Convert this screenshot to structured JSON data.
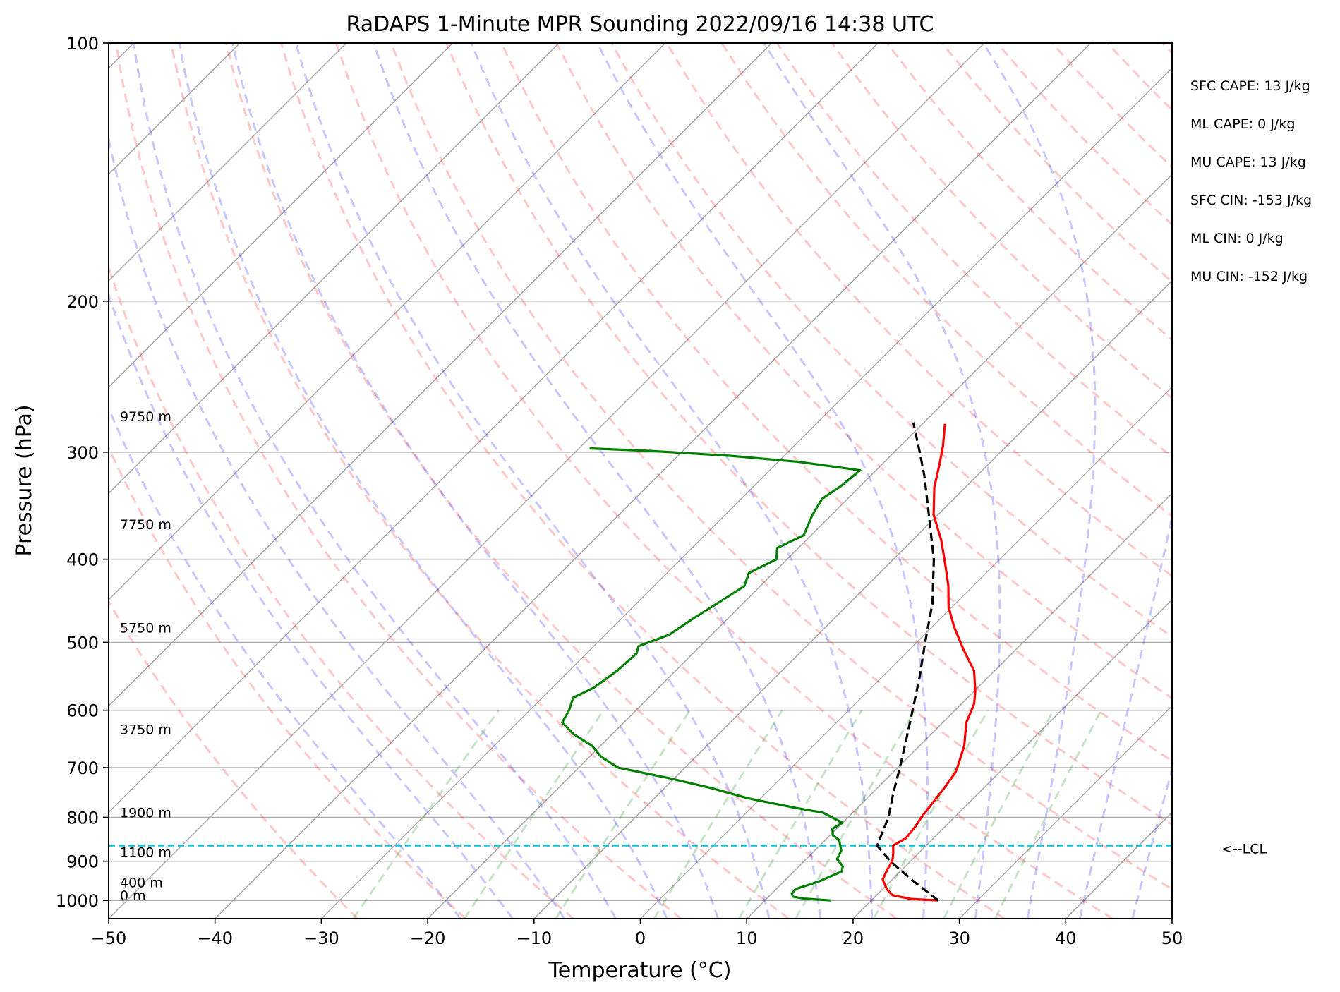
{
  "chart_data": {
    "type": "line",
    "title": "RaDAPS 1-Minute MPR Sounding 2022/09/16 14:38 UTC",
    "xlabel": "Temperature (°C)",
    "ylabel": "Pressure (hPa)",
    "xlim": [
      -50,
      50
    ],
    "ylim": [
      1050,
      100
    ],
    "y_scale": "log",
    "skew_t": true,
    "grid": true,
    "x_ticks": [
      "−50",
      "−40",
      "−30",
      "−20",
      "−10",
      "0",
      "10",
      "20",
      "30",
      "40",
      "50"
    ],
    "y_ticks": [
      "100",
      "200",
      "300",
      "400",
      "500",
      "600",
      "700",
      "800",
      "900",
      "1000"
    ],
    "height_labels": [
      {
        "pressure": 1000,
        "label": "0 m"
      },
      {
        "pressure": 965,
        "label": "400 m"
      },
      {
        "pressure": 890,
        "label": "1100 m"
      },
      {
        "pressure": 800,
        "label": "1900 m"
      },
      {
        "pressure": 640,
        "label": "3750 m"
      },
      {
        "pressure": 487,
        "label": "5750 m"
      },
      {
        "pressure": 369,
        "label": "7750 m"
      },
      {
        "pressure": 276,
        "label": "9750 m"
      }
    ],
    "indices": [
      "SFC CAPE: 13 J/kg",
      "ML CAPE: 0 J/kg",
      "MU CAPE: 13 J/kg",
      "SFC CIN: -153 J/kg",
      "ML CIN: 0 J/kg",
      "MU CIN: -152 J/kg"
    ],
    "lcl": {
      "pressure": 863,
      "label": "<--LCL"
    },
    "series": [
      {
        "role": "temperature",
        "color": "#ff0000",
        "points": [
          {
            "p": 1000,
            "t": 26.3
          },
          {
            "p": 996,
            "t": 23.6
          },
          {
            "p": 986,
            "t": 21.5
          },
          {
            "p": 970,
            "t": 20.4
          },
          {
            "p": 945,
            "t": 19.1
          },
          {
            "p": 920,
            "t": 18.6
          },
          {
            "p": 900,
            "t": 18.3
          },
          {
            "p": 880,
            "t": 17.6
          },
          {
            "p": 863,
            "t": 16.9
          },
          {
            "p": 846,
            "t": 17.4
          },
          {
            "p": 820,
            "t": 17.2
          },
          {
            "p": 800,
            "t": 16.9
          },
          {
            "p": 770,
            "t": 16.6
          },
          {
            "p": 740,
            "t": 16.3
          },
          {
            "p": 710,
            "t": 15.9
          },
          {
            "p": 700,
            "t": 15.6
          },
          {
            "p": 660,
            "t": 14.2
          },
          {
            "p": 620,
            "t": 12.2
          },
          {
            "p": 590,
            "t": 11.2
          },
          {
            "p": 570,
            "t": 10.1
          },
          {
            "p": 540,
            "t": 8.1
          },
          {
            "p": 510,
            "t": 5.1
          },
          {
            "p": 480,
            "t": 2.1
          },
          {
            "p": 455,
            "t": -0.3
          },
          {
            "p": 430,
            "t": -2.3
          },
          {
            "p": 405,
            "t": -4.7
          },
          {
            "p": 380,
            "t": -7.3
          },
          {
            "p": 355,
            "t": -10.4
          },
          {
            "p": 330,
            "t": -12.9
          },
          {
            "p": 310,
            "t": -14.6
          },
          {
            "p": 295,
            "t": -16.0
          },
          {
            "p": 278,
            "t": -17.9
          }
        ]
      },
      {
        "role": "dewpoint",
        "color": "#008000",
        "points": [
          {
            "p": 1000,
            "t": 16.2
          },
          {
            "p": 995,
            "t": 13.5
          },
          {
            "p": 990,
            "t": 12.3
          },
          {
            "p": 982,
            "t": 11.9
          },
          {
            "p": 970,
            "t": 11.8
          },
          {
            "p": 950,
            "t": 13.3
          },
          {
            "p": 925,
            "t": 14.5
          },
          {
            "p": 912,
            "t": 14.1
          },
          {
            "p": 895,
            "t": 12.9
          },
          {
            "p": 875,
            "t": 12.5
          },
          {
            "p": 850,
            "t": 11.3
          },
          {
            "p": 840,
            "t": 10.3
          },
          {
            "p": 825,
            "t": 9.6
          },
          {
            "p": 812,
            "t": 10.0
          },
          {
            "p": 790,
            "t": 7.2
          },
          {
            "p": 780,
            "t": 4.2
          },
          {
            "p": 760,
            "t": -1.2
          },
          {
            "p": 740,
            "t": -5.5
          },
          {
            "p": 720,
            "t": -10.5
          },
          {
            "p": 700,
            "t": -16.3
          },
          {
            "p": 680,
            "t": -18.9
          },
          {
            "p": 660,
            "t": -20.8
          },
          {
            "p": 640,
            "t": -23.6
          },
          {
            "p": 620,
            "t": -25.8
          },
          {
            "p": 600,
            "t": -26.3
          },
          {
            "p": 580,
            "t": -27.1
          },
          {
            "p": 565,
            "t": -26.1
          },
          {
            "p": 540,
            "t": -25.5
          },
          {
            "p": 515,
            "t": -25.3
          },
          {
            "p": 505,
            "t": -25.8
          },
          {
            "p": 490,
            "t": -24.0
          },
          {
            "p": 470,
            "t": -23.3
          },
          {
            "p": 450,
            "t": -22.4
          },
          {
            "p": 430,
            "t": -21.5
          },
          {
            "p": 415,
            "t": -22.3
          },
          {
            "p": 400,
            "t": -21.0
          },
          {
            "p": 388,
            "t": -22.0
          },
          {
            "p": 375,
            "t": -20.7
          },
          {
            "p": 355,
            "t": -21.8
          },
          {
            "p": 340,
            "t": -22.4
          },
          {
            "p": 328,
            "t": -21.8
          },
          {
            "p": 315,
            "t": -21.5
          },
          {
            "p": 308,
            "t": -28.0
          },
          {
            "p": 303,
            "t": -35.0
          },
          {
            "p": 299,
            "t": -43.0
          },
          {
            "p": 297,
            "t": -49.0
          }
        ]
      },
      {
        "role": "parcel",
        "color": "#000000",
        "style": "dashed",
        "points": [
          {
            "p": 1000,
            "t": 26.3
          },
          {
            "p": 950,
            "t": 22.2
          },
          {
            "p": 900,
            "t": 18.1
          },
          {
            "p": 863,
            "t": 15.4
          },
          {
            "p": 800,
            "t": 13.8
          },
          {
            "p": 750,
            "t": 12.0
          },
          {
            "p": 700,
            "t": 10.2
          },
          {
            "p": 650,
            "t": 8.2
          },
          {
            "p": 600,
            "t": 6.0
          },
          {
            "p": 550,
            "t": 3.6
          },
          {
            "p": 500,
            "t": 0.8
          },
          {
            "p": 450,
            "t": -2.2
          },
          {
            "p": 400,
            "t": -6.2
          },
          {
            "p": 350,
            "t": -11.4
          },
          {
            "p": 320,
            "t": -14.9
          },
          {
            "p": 300,
            "t": -17.6
          },
          {
            "p": 277,
            "t": -21.0
          }
        ]
      }
    ]
  }
}
